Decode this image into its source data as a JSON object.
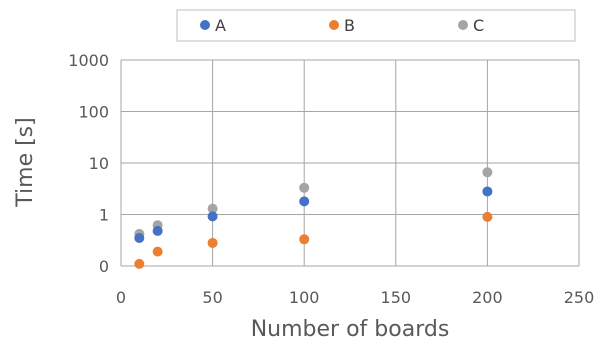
{
  "chart_data": {
    "type": "scatter",
    "xlabel": "Number of boards",
    "ylabel": "Time [s]",
    "xlim": [
      0,
      250
    ],
    "ylim": [
      0.1,
      1000
    ],
    "yscale": "log",
    "x_ticks": [
      0,
      50,
      100,
      150,
      200,
      250
    ],
    "x_tick_labels": [
      "0",
      "50",
      "100",
      "150",
      "200",
      "250"
    ],
    "y_ticks": [
      0.1,
      1,
      10,
      100,
      1000
    ],
    "y_tick_labels": [
      "0",
      "1",
      "10",
      "100",
      "1000"
    ],
    "grid": true,
    "legend_position": "top",
    "series": [
      {
        "name": "A",
        "color": "#4472C4",
        "x": [
          10,
          20,
          50,
          100,
          200
        ],
        "y": [
          0.35,
          0.48,
          0.92,
          1.8,
          2.8
        ]
      },
      {
        "name": "B",
        "color": "#ED7D31",
        "x": [
          10,
          20,
          50,
          100,
          200
        ],
        "y": [
          0.11,
          0.19,
          0.28,
          0.33,
          0.9
        ]
      },
      {
        "name": "C",
        "color": "#A5A5A5",
        "x": [
          10,
          20,
          50,
          100,
          200
        ],
        "y": [
          0.42,
          0.62,
          1.3,
          3.3,
          6.6
        ]
      }
    ]
  }
}
